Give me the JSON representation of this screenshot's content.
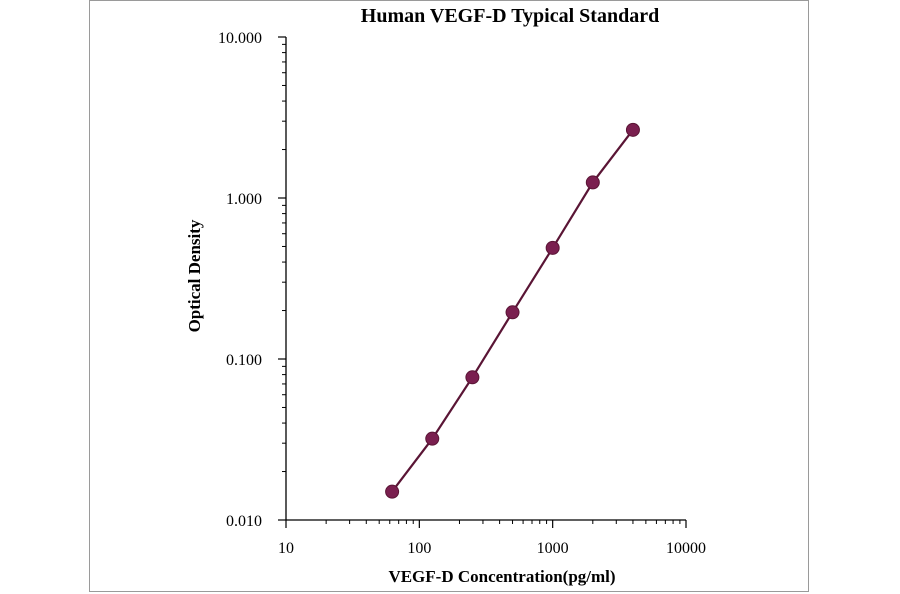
{
  "chart_data": {
    "type": "line",
    "title": "Human VEGF-D Typical Standard",
    "xlabel": "VEGF-D  Concentration(pg/ml)",
    "ylabel": "Optical Density",
    "x_scale": "log",
    "y_scale": "log",
    "xlim": [
      10,
      10000
    ],
    "ylim": [
      0.01,
      10
    ],
    "x_ticks": [
      {
        "value": 10,
        "label": "10"
      },
      {
        "value": 100,
        "label": "100"
      },
      {
        "value": 1000,
        "label": "1000"
      },
      {
        "value": 10000,
        "label": "10000"
      }
    ],
    "y_ticks": [
      {
        "value": 0.01,
        "label": "0.010"
      },
      {
        "value": 0.1,
        "label": "0.100"
      },
      {
        "value": 1,
        "label": "1.000"
      },
      {
        "value": 10,
        "label": "10.000"
      }
    ],
    "grid": false,
    "legend": "none",
    "series": [
      {
        "color": "#7a1f4f",
        "line_color": "#5a1535",
        "x": [
          62.5,
          125,
          250,
          500,
          1000,
          2000,
          4000
        ],
        "y": [
          0.015,
          0.032,
          0.077,
          0.195,
          0.49,
          1.25,
          2.65
        ]
      }
    ]
  }
}
